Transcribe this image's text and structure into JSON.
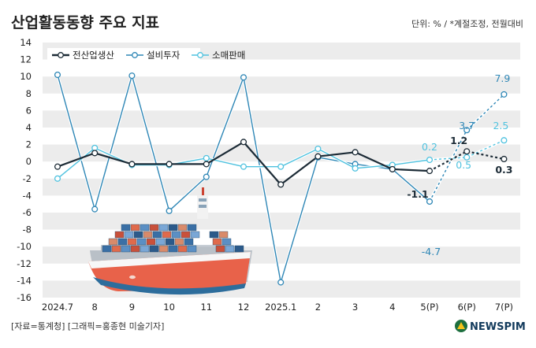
{
  "title": "산업활동동향 주요 지표",
  "unit_note": "단위: % / *계절조정, 전월대비",
  "source": "[자료=통계청] [그래픽=홍종현 미술기자]",
  "brand": "NEWSPIM",
  "colors": {
    "production": "#1c2b36",
    "investment": "#2f87b6",
    "retail": "#4fc2df",
    "band": "#ececec",
    "ship_hull": "#e8624a"
  },
  "chart_data": {
    "type": "line",
    "categories": [
      "2024.7",
      "8",
      "9",
      "10",
      "11",
      "12",
      "2025.1",
      "2",
      "3",
      "4",
      "5(P)",
      "6(P)",
      "7(P)"
    ],
    "ylim": [
      -16,
      14
    ],
    "yticks": [
      14,
      12,
      10,
      8,
      6,
      4,
      2,
      0,
      -2,
      -4,
      -6,
      -8,
      -10,
      -12,
      -14,
      -16
    ],
    "grid": "alternating horizontal bands",
    "legend_position": "top-left",
    "series": [
      {
        "name": "전산업생산",
        "key": "production",
        "values": [
          -0.6,
          1.0,
          -0.3,
          -0.3,
          -0.3,
          2.3,
          -2.7,
          0.6,
          1.1,
          -0.9,
          -1.1,
          1.2,
          0.3
        ]
      },
      {
        "name": "설비투자",
        "key": "investment",
        "values": [
          10.2,
          -5.6,
          10.1,
          -5.8,
          -1.8,
          9.9,
          -14.2,
          0.5,
          -0.3,
          -0.9,
          -4.7,
          3.7,
          7.9
        ]
      },
      {
        "name": "소매판매",
        "key": "retail",
        "values": [
          -2.0,
          1.6,
          -0.4,
          -0.4,
          0.4,
          -0.6,
          -0.6,
          1.5,
          -0.8,
          -0.4,
          0.2,
          0.5,
          2.5
        ]
      }
    ],
    "data_labels": [
      {
        "series": "production",
        "index": 10,
        "text": "-1.1"
      },
      {
        "series": "production",
        "index": 11,
        "text": "1.2"
      },
      {
        "series": "production",
        "index": 12,
        "text": "0.3"
      },
      {
        "series": "investment",
        "index": 10,
        "text": "-4.7"
      },
      {
        "series": "investment",
        "index": 11,
        "text": "3.7"
      },
      {
        "series": "investment",
        "index": 12,
        "text": "7.9"
      },
      {
        "series": "retail",
        "index": 10,
        "text": "0.2"
      },
      {
        "series": "retail",
        "index": 11,
        "text": "0.5"
      },
      {
        "series": "retail",
        "index": 12,
        "text": "2.5"
      }
    ]
  }
}
